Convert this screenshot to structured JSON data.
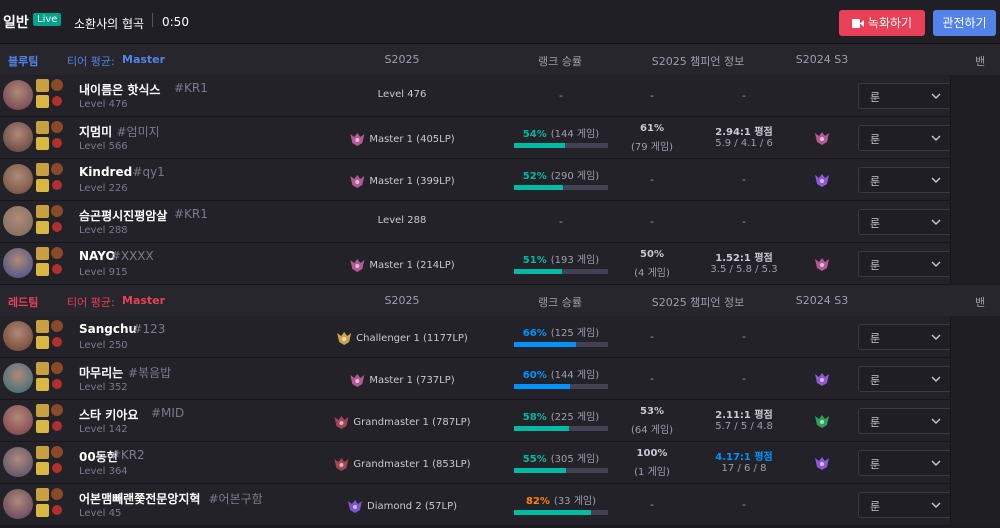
{
  "header": {
    "mode": "일반",
    "live": "Live",
    "map": "소환사의 협곡",
    "time": "0:50",
    "record_button": "녹화하기",
    "spectate_button": "관전하기"
  },
  "teams": [
    {
      "name": "블루팀",
      "name_color": "#5383e8",
      "tier_label": "티어 평균:",
      "tier": "Master",
      "columns": [
        "S2025",
        "랭크 승률",
        "S2025 챔피언 정보",
        "S2024 S3",
        "밴"
      ],
      "players": [
        {
          "name": "내이름은 핫식스",
          "tag": "#KR1",
          "level": "Level 476",
          "avatar": "#6a3a4a",
          "rank": "Level 476",
          "winrate": "-",
          "champ_winrate": "-",
          "kda": "-",
          "rune": "룬"
        },
        {
          "name": "지멈미",
          "tag": "#엄미지",
          "level": "Level 566",
          "avatar": "#5a3a3a",
          "rank": "Master 1 (405LP)",
          "emblem": "#c15fa0",
          "winrate": {
            "value": 54,
            "label": "54%"
          },
          "games": "(144 게임)",
          "bar_color": "#00bba3",
          "champ_winrate": "61%",
          "champ_games": "(79 게임)",
          "kda": "2.94:1 평점",
          "kda_detail": "5.9 / 4.1 / 6",
          "s2024": "#c15fa0",
          "rune": "룬"
        },
        {
          "name": "Kindred",
          "tag": "#qy1",
          "level": "Level 226",
          "avatar": "#6a4a3a",
          "rank": "Master 1 (399LP)",
          "emblem": "#c15fa0",
          "winrate": {
            "value": 52,
            "label": "52%"
          },
          "games": "(290 게임)",
          "bar_color": "#00bba3",
          "champ_winrate": "-",
          "kda": "-",
          "s2024": "#9b5de5",
          "rune": "룬"
        },
        {
          "name": "슴곤평시진평암살",
          "tag": "#KR1",
          "level": "Level 288",
          "avatar": "#7a6a5a",
          "rank": "Level 288",
          "winrate": "-",
          "champ_winrate": "-",
          "kda": "-",
          "rune": "룬"
        },
        {
          "name": "NAYO",
          "tag": "#XXXX",
          "level": "Level 915",
          "avatar": "#3a4a8a",
          "rank": "Master 1 (214LP)",
          "emblem": "#c15fa0",
          "winrate": {
            "value": 51,
            "label": "51%"
          },
          "games": "(193 게임)",
          "bar_color": "#00bba3",
          "champ_winrate": "50%",
          "champ_games": "(4 게임)",
          "kda": "1.52:1 평점",
          "kda_detail": "3.5 / 5.8 / 5.3",
          "s2024": "#c15fa0",
          "rune": "룬"
        }
      ]
    },
    {
      "name": "레드팀",
      "name_color": "#e84057",
      "tier_label": "티어 평균:",
      "tier": "Master",
      "columns": [
        "S2025",
        "랭크 승률",
        "S2025 챔피언 정보",
        "S2024 S3",
        "밴"
      ],
      "players": [
        {
          "name": "Sangchu",
          "tag": "#123",
          "level": "Level 250",
          "avatar": "#6a3a2a",
          "rank": "Challenger 1 (1177LP)",
          "emblem": "#e0b050",
          "winrate": {
            "value": 66,
            "label": "66%"
          },
          "games": "(125 게임)",
          "bar_color": "#0093ff",
          "champ_winrate": "-",
          "kda": "-",
          "rune": "룬"
        },
        {
          "name": "마무리는",
          "tag": "#볶음밥",
          "level": "Level 352",
          "avatar": "#2a6a7a",
          "rank": "Master 1 (737LP)",
          "emblem": "#c15fa0",
          "winrate": {
            "value": 60,
            "label": "60%"
          },
          "games": "(144 게임)",
          "bar_color": "#0093ff",
          "champ_winrate": "-",
          "kda": "-",
          "s2024": "#9b5de5",
          "rune": "룬"
        },
        {
          "name": "스타 키아요",
          "tag": "#MID",
          "level": "Level 142",
          "avatar": "#7a3a4a",
          "rank": "Grandmaster 1 (787LP)",
          "emblem": "#b04a5a",
          "winrate": {
            "value": 58,
            "label": "58%"
          },
          "games": "(225 게임)",
          "bar_color": "#00bba3",
          "champ_winrate": "53%",
          "champ_games": "(64 게임)",
          "kda": "2.11:1 평점",
          "kda_detail": "5.7 / 5 / 4.8",
          "s2024": "#2daf5f",
          "rune": "룬"
        },
        {
          "name": "00동현",
          "tag": "#KR2",
          "level": "Level 364",
          "avatar": "#4a4a6a",
          "rank": "Grandmaster 1 (853LP)",
          "emblem": "#b04a5a",
          "winrate": {
            "value": 55,
            "label": "55%"
          },
          "games": "(305 게임)",
          "bar_color": "#00bba3",
          "champ_winrate": "100%",
          "champ_games": "(1 게임)",
          "kda": "4.17:1 평점",
          "kda_color": "#0093ff",
          "kda_detail": "17 / 6 / 8",
          "s2024": "#9b5de5",
          "rune": "룬"
        },
        {
          "name": "어본맴빼랜쭃전문앙지혁",
          "tag": "#어본구함",
          "level": "Level 45",
          "avatar": "#5a3a5a",
          "rank": "Diamond 2 (57LP)",
          "emblem": "#8a5ae0",
          "winrate": {
            "value": 82,
            "label": "82%"
          },
          "win_color": "#ff8200",
          "games": "(33 게임)",
          "bar_color": "#00bba3",
          "champ_winrate": "-",
          "kda": "-",
          "rune": "룬"
        }
      ]
    }
  ]
}
